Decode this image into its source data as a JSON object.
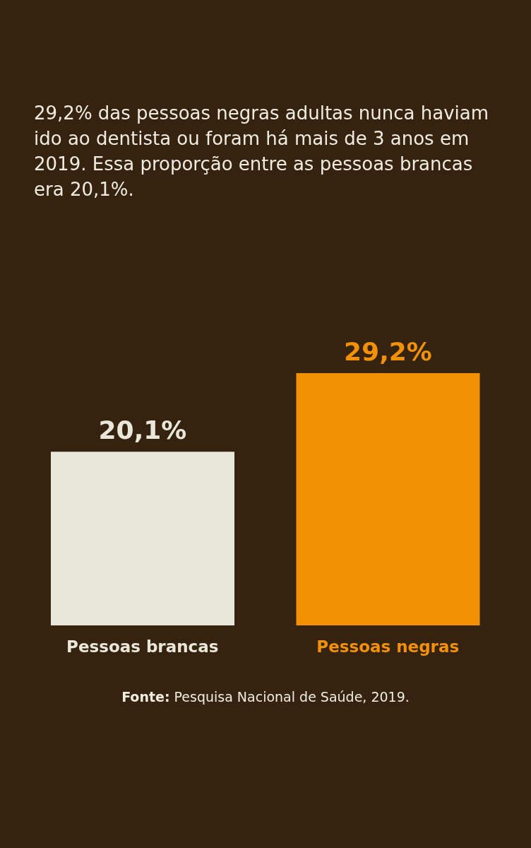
{
  "chart_data": {
    "type": "bar",
    "title": "29,2% das pessoas negras adultas nunca haviam ido ao dentista ou foram há mais de 3 anos em 2019. Essa proporção entre as pessoas brancas era 20,1%.",
    "categories": [
      "Pessoas brancas",
      "Pessoas negras"
    ],
    "values": [
      20.1,
      29.2
    ],
    "value_labels": [
      "20,1%",
      "29,2%"
    ],
    "colors": [
      "#e9e6da",
      "#f29104"
    ],
    "annotations": [
      "Fonte: Pesquisa Nacional de Saúde, 2019."
    ]
  }
}
